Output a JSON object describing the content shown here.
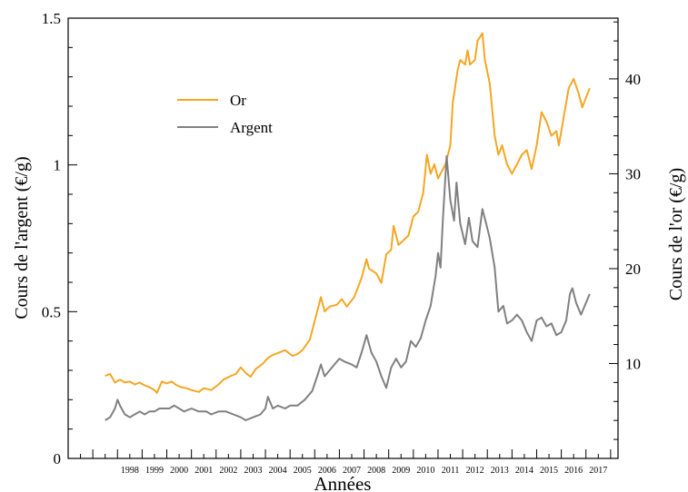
{
  "chart_data": {
    "type": "line",
    "xlabel": "Années",
    "ylabel_left": "Cours de l'argent (€/g)",
    "ylabel_right": "Cours de l'or (€/g)",
    "xlim": [
      1996.0,
      2018.3
    ],
    "ylim_left": [
      0,
      1.5
    ],
    "ylim_right": [
      0,
      46.4
    ],
    "x_ticks": [
      "1998",
      "1999",
      "2000",
      "2001",
      "2002",
      "2003",
      "2004",
      "2005",
      "2006",
      "2007",
      "2008",
      "2009",
      "2010",
      "2011",
      "2012",
      "2013",
      "2014",
      "2015",
      "2016",
      "2017"
    ],
    "yleft_ticks": [
      "0",
      "0.5",
      "1",
      "1.5"
    ],
    "yright_ticks": [
      "10",
      "20",
      "30",
      "40"
    ],
    "legend_position": "top-left",
    "colors": {
      "or": "#F5A623",
      "argent": "#808080"
    },
    "series": [
      {
        "name": "Or",
        "axis": "right",
        "color": "#F5A623",
        "points": [
          [
            1997.5,
            8.7
          ],
          [
            1997.7,
            8.9
          ],
          [
            1997.9,
            8.0
          ],
          [
            1998.1,
            8.3
          ],
          [
            1998.3,
            8.0
          ],
          [
            1998.5,
            8.1
          ],
          [
            1998.7,
            7.8
          ],
          [
            1998.9,
            8.0
          ],
          [
            1999.1,
            7.7
          ],
          [
            1999.3,
            7.5
          ],
          [
            1999.5,
            7.2
          ],
          [
            1999.6,
            6.9
          ],
          [
            1999.8,
            8.1
          ],
          [
            2000.0,
            7.9
          ],
          [
            2000.2,
            8.1
          ],
          [
            2000.4,
            7.7
          ],
          [
            2000.6,
            7.5
          ],
          [
            2000.8,
            7.4
          ],
          [
            2001.0,
            7.2
          ],
          [
            2001.3,
            7.0
          ],
          [
            2001.5,
            7.4
          ],
          [
            2001.8,
            7.2
          ],
          [
            2002.1,
            7.8
          ],
          [
            2002.3,
            8.3
          ],
          [
            2002.6,
            8.7
          ],
          [
            2002.8,
            8.9
          ],
          [
            2003.0,
            9.6
          ],
          [
            2003.2,
            9.0
          ],
          [
            2003.4,
            8.6
          ],
          [
            2003.6,
            9.4
          ],
          [
            2003.9,
            10.0
          ],
          [
            2004.1,
            10.6
          ],
          [
            2004.3,
            10.9
          ],
          [
            2004.6,
            11.2
          ],
          [
            2004.8,
            11.4
          ],
          [
            2005.1,
            10.8
          ],
          [
            2005.3,
            11.0
          ],
          [
            2005.5,
            11.4
          ],
          [
            2005.8,
            12.5
          ],
          [
            2005.9,
            13.5
          ],
          [
            2006.1,
            15.5
          ],
          [
            2006.25,
            17.0
          ],
          [
            2006.4,
            15.5
          ],
          [
            2006.6,
            16.0
          ],
          [
            2006.9,
            16.2
          ],
          [
            2007.1,
            16.8
          ],
          [
            2007.3,
            16.0
          ],
          [
            2007.6,
            17.0
          ],
          [
            2007.9,
            19.0
          ],
          [
            2008.1,
            21.0
          ],
          [
            2008.2,
            20.0
          ],
          [
            2008.5,
            19.5
          ],
          [
            2008.7,
            18.5
          ],
          [
            2008.9,
            21.5
          ],
          [
            2009.1,
            22.0
          ],
          [
            2009.2,
            24.5
          ],
          [
            2009.4,
            22.5
          ],
          [
            2009.6,
            23.0
          ],
          [
            2009.8,
            23.5
          ],
          [
            2010.0,
            25.5
          ],
          [
            2010.2,
            26.0
          ],
          [
            2010.4,
            28.0
          ],
          [
            2010.55,
            32.0
          ],
          [
            2010.7,
            30.0
          ],
          [
            2010.85,
            31.0
          ],
          [
            2011.0,
            29.5
          ],
          [
            2011.1,
            30.0
          ],
          [
            2011.3,
            31.0
          ],
          [
            2011.5,
            33.0
          ],
          [
            2011.6,
            37.5
          ],
          [
            2011.8,
            41.0
          ],
          [
            2011.9,
            42.0
          ],
          [
            2012.1,
            41.5
          ],
          [
            2012.2,
            43.0
          ],
          [
            2012.3,
            41.5
          ],
          [
            2012.5,
            42.0
          ],
          [
            2012.6,
            44.0
          ],
          [
            2012.8,
            44.8
          ],
          [
            2012.9,
            42.0
          ],
          [
            2013.1,
            39.5
          ],
          [
            2013.3,
            34.0
          ],
          [
            2013.45,
            32.0
          ],
          [
            2013.6,
            33.0
          ],
          [
            2013.8,
            31.0
          ],
          [
            2014.0,
            30.0
          ],
          [
            2014.2,
            31.0
          ],
          [
            2014.4,
            32.0
          ],
          [
            2014.6,
            32.5
          ],
          [
            2014.8,
            30.5
          ],
          [
            2015.0,
            33.0
          ],
          [
            2015.2,
            36.5
          ],
          [
            2015.4,
            35.5
          ],
          [
            2015.6,
            34.0
          ],
          [
            2015.8,
            34.5
          ],
          [
            2015.9,
            33.0
          ],
          [
            2016.1,
            36.0
          ],
          [
            2016.3,
            39.0
          ],
          [
            2016.5,
            40.0
          ],
          [
            2016.7,
            38.5
          ],
          [
            2016.85,
            37.0
          ],
          [
            2017.0,
            38.0
          ],
          [
            2017.15,
            39.0
          ]
        ]
      },
      {
        "name": "Argent",
        "axis": "left",
        "color": "#808080",
        "points": [
          [
            1997.5,
            0.13
          ],
          [
            1997.7,
            0.14
          ],
          [
            1997.9,
            0.17
          ],
          [
            1998.0,
            0.2
          ],
          [
            1998.1,
            0.18
          ],
          [
            1998.3,
            0.15
          ],
          [
            1998.5,
            0.14
          ],
          [
            1998.7,
            0.15
          ],
          [
            1998.9,
            0.16
          ],
          [
            1999.1,
            0.15
          ],
          [
            1999.3,
            0.16
          ],
          [
            1999.5,
            0.16
          ],
          [
            1999.7,
            0.17
          ],
          [
            1999.9,
            0.17
          ],
          [
            2000.1,
            0.17
          ],
          [
            2000.3,
            0.18
          ],
          [
            2000.5,
            0.17
          ],
          [
            2000.7,
            0.16
          ],
          [
            2001.0,
            0.17
          ],
          [
            2001.3,
            0.16
          ],
          [
            2001.6,
            0.16
          ],
          [
            2001.8,
            0.15
          ],
          [
            2002.1,
            0.16
          ],
          [
            2002.4,
            0.16
          ],
          [
            2002.7,
            0.15
          ],
          [
            2003.0,
            0.14
          ],
          [
            2003.2,
            0.13
          ],
          [
            2003.5,
            0.14
          ],
          [
            2003.8,
            0.15
          ],
          [
            2004.0,
            0.17
          ],
          [
            2004.1,
            0.21
          ],
          [
            2004.3,
            0.17
          ],
          [
            2004.5,
            0.18
          ],
          [
            2004.8,
            0.17
          ],
          [
            2005.0,
            0.18
          ],
          [
            2005.3,
            0.18
          ],
          [
            2005.6,
            0.2
          ],
          [
            2005.9,
            0.23
          ],
          [
            2006.1,
            0.28
          ],
          [
            2006.25,
            0.32
          ],
          [
            2006.4,
            0.28
          ],
          [
            2006.6,
            0.3
          ],
          [
            2006.8,
            0.32
          ],
          [
            2007.0,
            0.34
          ],
          [
            2007.2,
            0.33
          ],
          [
            2007.5,
            0.32
          ],
          [
            2007.7,
            0.31
          ],
          [
            2007.9,
            0.36
          ],
          [
            2008.0,
            0.39
          ],
          [
            2008.1,
            0.42
          ],
          [
            2008.3,
            0.36
          ],
          [
            2008.5,
            0.33
          ],
          [
            2008.7,
            0.28
          ],
          [
            2008.9,
            0.24
          ],
          [
            2009.1,
            0.31
          ],
          [
            2009.3,
            0.34
          ],
          [
            2009.5,
            0.31
          ],
          [
            2009.7,
            0.33
          ],
          [
            2009.9,
            0.4
          ],
          [
            2010.1,
            0.38
          ],
          [
            2010.3,
            0.41
          ],
          [
            2010.5,
            0.47
          ],
          [
            2010.7,
            0.52
          ],
          [
            2010.9,
            0.62
          ],
          [
            2011.0,
            0.7
          ],
          [
            2011.1,
            0.65
          ],
          [
            2011.2,
            0.82
          ],
          [
            2011.35,
            1.03
          ],
          [
            2011.5,
            0.88
          ],
          [
            2011.65,
            0.81
          ],
          [
            2011.75,
            0.94
          ],
          [
            2011.9,
            0.8
          ],
          [
            2012.1,
            0.73
          ],
          [
            2012.25,
            0.82
          ],
          [
            2012.4,
            0.74
          ],
          [
            2012.6,
            0.72
          ],
          [
            2012.8,
            0.85
          ],
          [
            2012.95,
            0.8
          ],
          [
            2013.1,
            0.75
          ],
          [
            2013.3,
            0.65
          ],
          [
            2013.45,
            0.5
          ],
          [
            2013.65,
            0.52
          ],
          [
            2013.8,
            0.46
          ],
          [
            2014.0,
            0.47
          ],
          [
            2014.2,
            0.49
          ],
          [
            2014.4,
            0.47
          ],
          [
            2014.6,
            0.43
          ],
          [
            2014.8,
            0.4
          ],
          [
            2015.0,
            0.47
          ],
          [
            2015.2,
            0.48
          ],
          [
            2015.4,
            0.45
          ],
          [
            2015.6,
            0.46
          ],
          [
            2015.8,
            0.42
          ],
          [
            2016.0,
            0.43
          ],
          [
            2016.2,
            0.47
          ],
          [
            2016.35,
            0.56
          ],
          [
            2016.45,
            0.58
          ],
          [
            2016.6,
            0.53
          ],
          [
            2016.8,
            0.49
          ],
          [
            2016.95,
            0.52
          ],
          [
            2017.15,
            0.56
          ]
        ]
      }
    ]
  }
}
